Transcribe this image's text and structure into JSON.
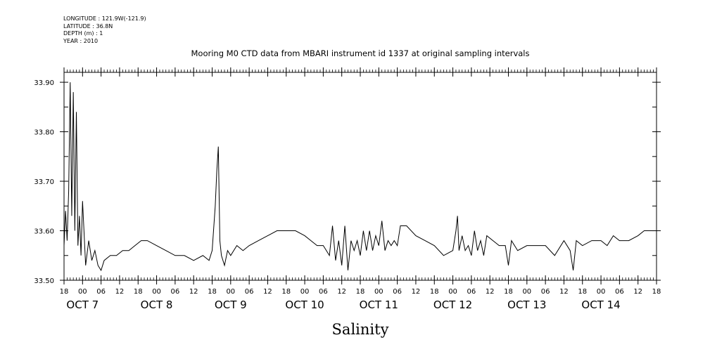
{
  "meta": {
    "longitude": "LONGITUDE : 121.9W(-121.9)",
    "latitude": "LATITUDE : 36.8N",
    "depth": "DEPTH (m) : 1",
    "year": "YEAR : 2010"
  },
  "chart_data": {
    "type": "line",
    "title": "Mooring M0 CTD data from MBARI instrument id 1337 at original sampling intervals",
    "xlabel": "Salinity",
    "ylabel": "",
    "xlim": [
      "2010-10-06T18:00",
      "2010-10-14T18:00"
    ],
    "ylim": [
      33.5,
      33.92
    ],
    "y_ticks": [
      "33.50",
      "33.60",
      "33.70",
      "33.80",
      "33.90"
    ],
    "hour_tick_labels": [
      "18",
      "00",
      "06",
      "12",
      "18",
      "00",
      "06",
      "12",
      "18",
      "00",
      "06",
      "12",
      "18",
      "00",
      "06",
      "12",
      "18",
      "00",
      "06",
      "12",
      "18",
      "00",
      "06",
      "12",
      "18",
      "00",
      "06",
      "12",
      "18",
      "00",
      "06",
      "12",
      "18"
    ],
    "day_labels": [
      "OCT  7",
      "OCT  8",
      "OCT  9",
      "OCT 10",
      "OCT 11",
      "OCT 12",
      "OCT 13",
      "OCT 14"
    ],
    "grid": false,
    "series": [
      {
        "values": [
          [
            "2010-10-06T18:00",
            33.57
          ],
          [
            "2010-10-06T18:30",
            33.64
          ],
          [
            "2010-10-06T19:00",
            33.58
          ],
          [
            "2010-10-06T19:30",
            33.68
          ],
          [
            "2010-10-06T20:00",
            33.9
          ],
          [
            "2010-10-06T20:30",
            33.63
          ],
          [
            "2010-10-06T21:00",
            33.88
          ],
          [
            "2010-10-06T21:30",
            33.6
          ],
          [
            "2010-10-06T22:00",
            33.84
          ],
          [
            "2010-10-06T22:30",
            33.57
          ],
          [
            "2010-10-06T23:00",
            33.63
          ],
          [
            "2010-10-06T23:30",
            33.55
          ],
          [
            "2010-10-07T00:00",
            33.66
          ],
          [
            "2010-10-07T01:00",
            33.53
          ],
          [
            "2010-10-07T02:00",
            33.58
          ],
          [
            "2010-10-07T03:00",
            33.54
          ],
          [
            "2010-10-07T04:00",
            33.56
          ],
          [
            "2010-10-07T05:00",
            33.53
          ],
          [
            "2010-10-07T06:00",
            33.52
          ],
          [
            "2010-10-07T07:00",
            33.54
          ],
          [
            "2010-10-07T09:00",
            33.55
          ],
          [
            "2010-10-07T11:00",
            33.55
          ],
          [
            "2010-10-07T13:00",
            33.56
          ],
          [
            "2010-10-07T15:00",
            33.56
          ],
          [
            "2010-10-07T17:00",
            33.57
          ],
          [
            "2010-10-07T19:00",
            33.58
          ],
          [
            "2010-10-07T21:00",
            33.58
          ],
          [
            "2010-10-08T00:00",
            33.57
          ],
          [
            "2010-10-08T03:00",
            33.56
          ],
          [
            "2010-10-08T06:00",
            33.55
          ],
          [
            "2010-10-08T09:00",
            33.55
          ],
          [
            "2010-10-08T12:00",
            33.54
          ],
          [
            "2010-10-08T15:00",
            33.55
          ],
          [
            "2010-10-08T17:00",
            33.54
          ],
          [
            "2010-10-08T18:00",
            33.56
          ],
          [
            "2010-10-08T19:00",
            33.65
          ],
          [
            "2010-10-08T19:30",
            33.72
          ],
          [
            "2010-10-08T20:00",
            33.77
          ],
          [
            "2010-10-08T20:30",
            33.58
          ],
          [
            "2010-10-08T21:00",
            33.55
          ],
          [
            "2010-10-08T22:00",
            33.53
          ],
          [
            "2010-10-08T23:00",
            33.56
          ],
          [
            "2010-10-09T00:00",
            33.55
          ],
          [
            "2010-10-09T02:00",
            33.57
          ],
          [
            "2010-10-09T04:00",
            33.56
          ],
          [
            "2010-10-09T06:00",
            33.57
          ],
          [
            "2010-10-09T09:00",
            33.58
          ],
          [
            "2010-10-09T12:00",
            33.59
          ],
          [
            "2010-10-09T15:00",
            33.6
          ],
          [
            "2010-10-09T18:00",
            33.6
          ],
          [
            "2010-10-09T21:00",
            33.6
          ],
          [
            "2010-10-10T00:00",
            33.59
          ],
          [
            "2010-10-10T02:00",
            33.58
          ],
          [
            "2010-10-10T04:00",
            33.57
          ],
          [
            "2010-10-10T06:00",
            33.57
          ],
          [
            "2010-10-10T08:00",
            33.55
          ],
          [
            "2010-10-10T09:00",
            33.61
          ],
          [
            "2010-10-10T10:00",
            33.54
          ],
          [
            "2010-10-10T11:00",
            33.58
          ],
          [
            "2010-10-10T12:00",
            33.53
          ],
          [
            "2010-10-10T13:00",
            33.61
          ],
          [
            "2010-10-10T14:00",
            33.52
          ],
          [
            "2010-10-10T15:00",
            33.58
          ],
          [
            "2010-10-10T16:00",
            33.56
          ],
          [
            "2010-10-10T17:00",
            33.58
          ],
          [
            "2010-10-10T18:00",
            33.55
          ],
          [
            "2010-10-10T19:00",
            33.6
          ],
          [
            "2010-10-10T20:00",
            33.56
          ],
          [
            "2010-10-10T21:00",
            33.6
          ],
          [
            "2010-10-10T22:00",
            33.56
          ],
          [
            "2010-10-10T23:00",
            33.59
          ],
          [
            "2010-10-11T00:00",
            33.57
          ],
          [
            "2010-10-11T01:00",
            33.62
          ],
          [
            "2010-10-11T02:00",
            33.56
          ],
          [
            "2010-10-11T03:00",
            33.58
          ],
          [
            "2010-10-11T04:00",
            33.57
          ],
          [
            "2010-10-11T05:00",
            33.58
          ],
          [
            "2010-10-11T06:00",
            33.57
          ],
          [
            "2010-10-11T07:00",
            33.61
          ],
          [
            "2010-10-11T09:00",
            33.61
          ],
          [
            "2010-10-11T12:00",
            33.59
          ],
          [
            "2010-10-11T15:00",
            33.58
          ],
          [
            "2010-10-11T18:00",
            33.57
          ],
          [
            "2010-10-11T21:00",
            33.55
          ],
          [
            "2010-10-12T00:00",
            33.56
          ],
          [
            "2010-10-12T01:00",
            33.6
          ],
          [
            "2010-10-12T01:30",
            33.63
          ],
          [
            "2010-10-12T02:00",
            33.56
          ],
          [
            "2010-10-12T03:00",
            33.59
          ],
          [
            "2010-10-12T04:00",
            33.56
          ],
          [
            "2010-10-12T05:00",
            33.57
          ],
          [
            "2010-10-12T06:00",
            33.55
          ],
          [
            "2010-10-12T07:00",
            33.6
          ],
          [
            "2010-10-12T08:00",
            33.56
          ],
          [
            "2010-10-12T09:00",
            33.58
          ],
          [
            "2010-10-12T10:00",
            33.55
          ],
          [
            "2010-10-12T11:00",
            33.59
          ],
          [
            "2010-10-12T13:00",
            33.58
          ],
          [
            "2010-10-12T15:00",
            33.57
          ],
          [
            "2010-10-12T17:00",
            33.57
          ],
          [
            "2010-10-12T18:00",
            33.53
          ],
          [
            "2010-10-12T19:00",
            33.58
          ],
          [
            "2010-10-12T21:00",
            33.56
          ],
          [
            "2010-10-13T00:00",
            33.57
          ],
          [
            "2010-10-13T03:00",
            33.57
          ],
          [
            "2010-10-13T06:00",
            33.57
          ],
          [
            "2010-10-13T09:00",
            33.55
          ],
          [
            "2010-10-13T12:00",
            33.58
          ],
          [
            "2010-10-13T14:00",
            33.56
          ],
          [
            "2010-10-13T15:00",
            33.52
          ],
          [
            "2010-10-13T16:00",
            33.58
          ],
          [
            "2010-10-13T18:00",
            33.57
          ],
          [
            "2010-10-13T21:00",
            33.58
          ],
          [
            "2010-10-14T00:00",
            33.58
          ],
          [
            "2010-10-14T02:00",
            33.57
          ],
          [
            "2010-10-14T04:00",
            33.59
          ],
          [
            "2010-10-14T06:00",
            33.58
          ],
          [
            "2010-10-14T09:00",
            33.58
          ],
          [
            "2010-10-14T12:00",
            33.59
          ],
          [
            "2010-10-14T14:00",
            33.6
          ],
          [
            "2010-10-14T16:00",
            33.6
          ],
          [
            "2010-10-14T18:00",
            33.6
          ]
        ]
      }
    ]
  }
}
